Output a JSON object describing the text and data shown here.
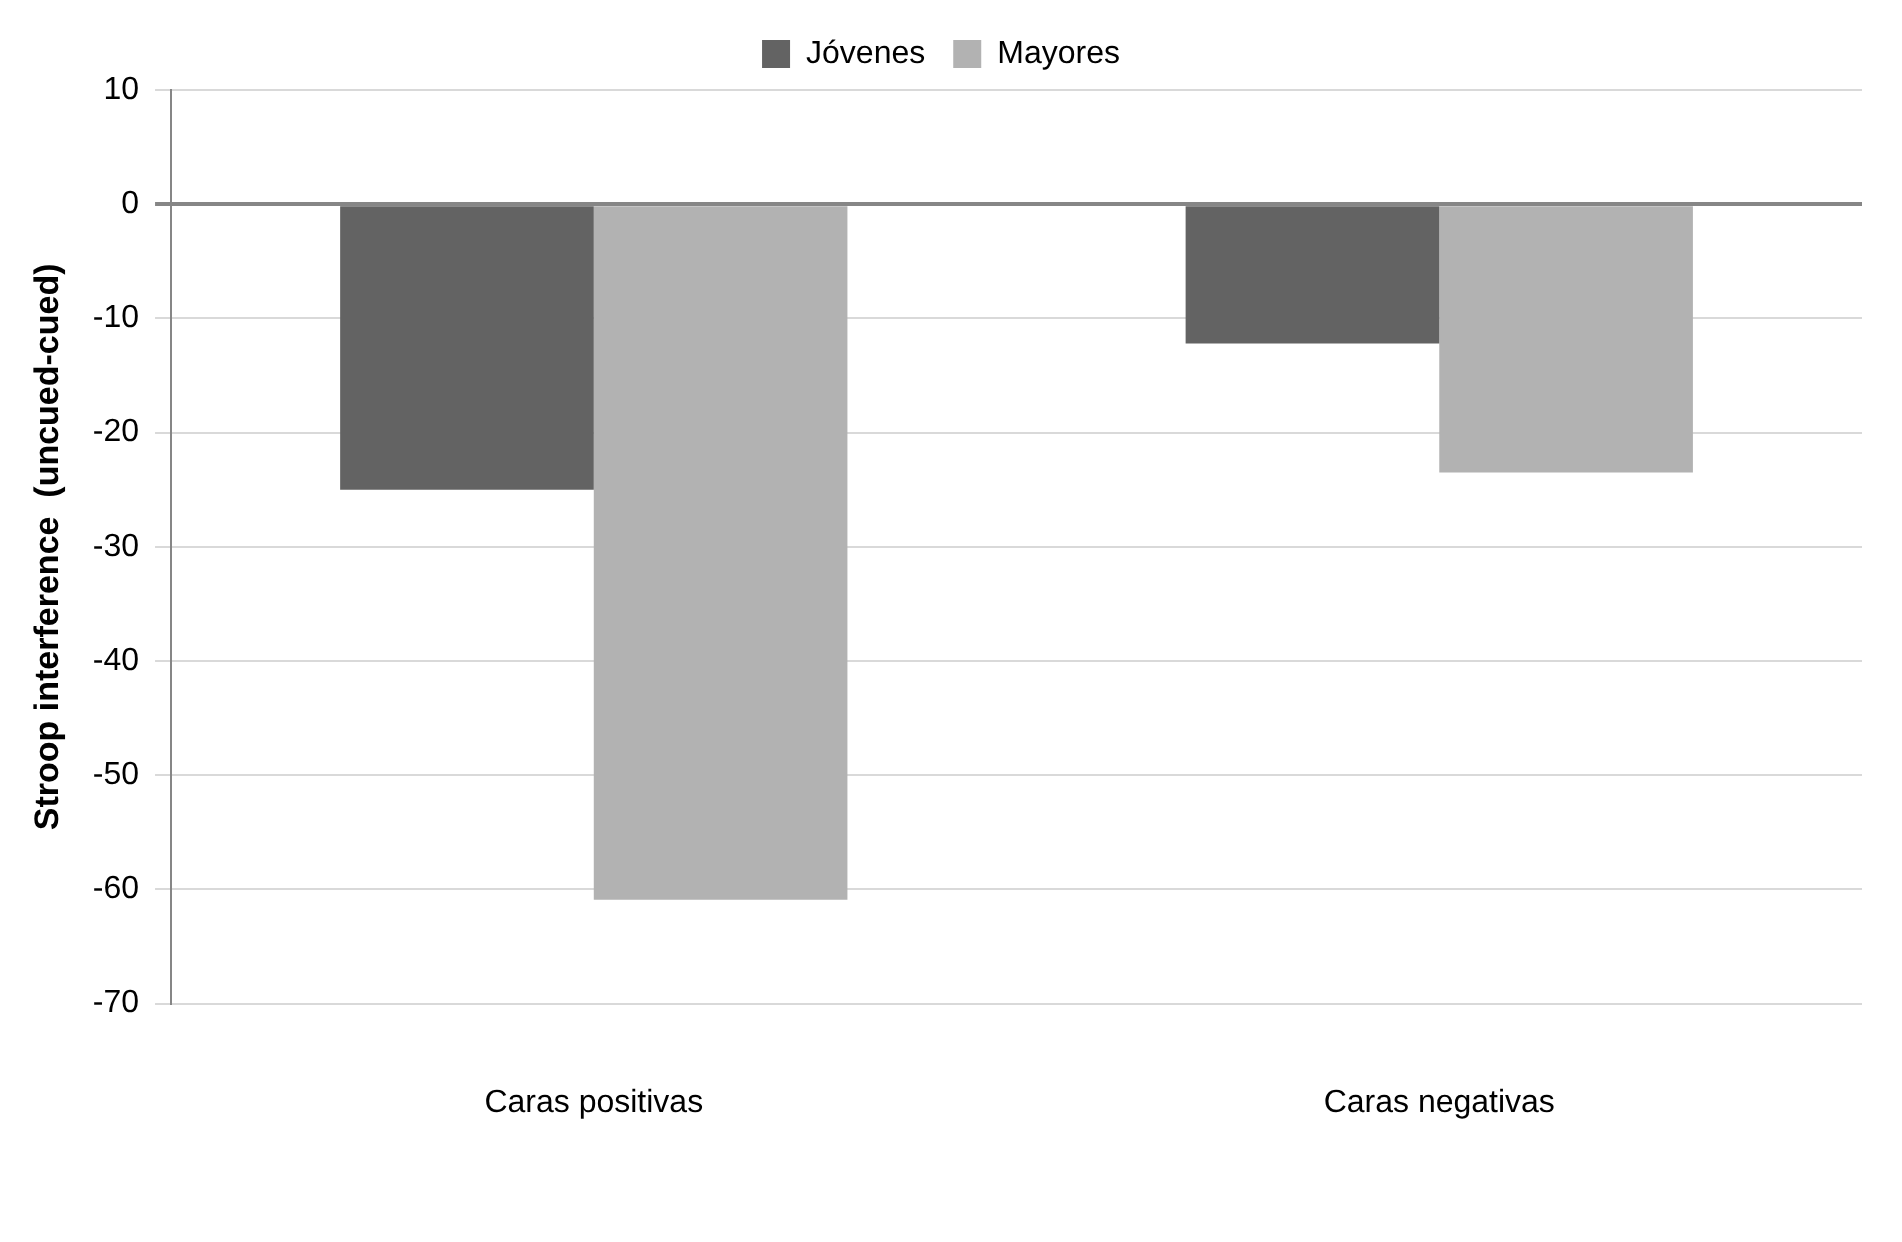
{
  "chart_data": {
    "type": "bar",
    "ylabel": "Stroop interference  (uncued-cued)",
    "categories": [
      "Caras positivas",
      "Caras negativas"
    ],
    "series": [
      {
        "name": "Jóvenes",
        "color": "#636363",
        "values": [
          -25,
          -12.2
        ]
      },
      {
        "name": "Mayores",
        "color": "#b2b2b2",
        "values": [
          -60.9,
          -23.5
        ]
      }
    ],
    "ylim": [
      -70,
      10
    ],
    "yticks": [
      -70,
      -60,
      -50,
      -40,
      -30,
      -20,
      -10,
      0,
      10
    ],
    "grid": "y",
    "legend": "top"
  }
}
